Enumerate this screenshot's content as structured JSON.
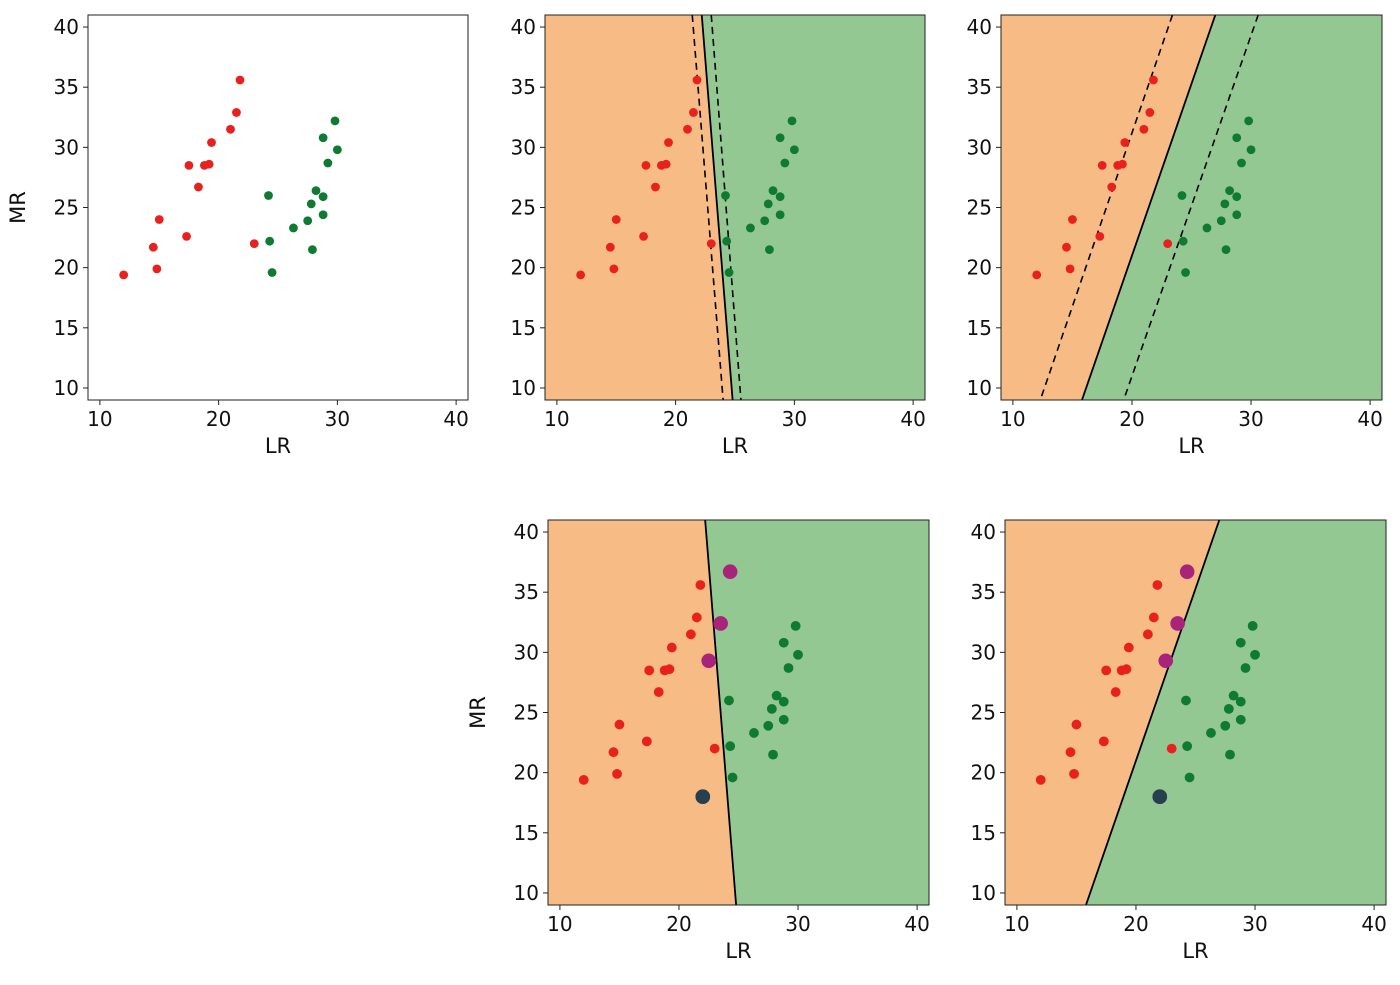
{
  "colors": {
    "class_a_point": "#e8211f",
    "class_b_point": "#0f7a32",
    "new_point_purple": "#a8237a",
    "new_point_dark": "#26404f",
    "region_a": "#f7bb86",
    "region_b": "#93c893",
    "boundary": "#000000"
  },
  "chart_data": [
    {
      "type": "scatter",
      "xlabel": "LR",
      "ylabel": "MR",
      "xlim": [
        9,
        41
      ],
      "ylim": [
        9,
        41
      ],
      "xticks": [
        "10",
        "20",
        "30",
        "40"
      ],
      "yticks": [
        "10",
        "15",
        "20",
        "25",
        "30",
        "35",
        "40"
      ],
      "grid": false,
      "series": [
        {
          "class": "a",
          "x": [
            12,
            14.5,
            15,
            14.8,
            17.3,
            17.5,
            18.3,
            18.8,
            19.2,
            19.4,
            21,
            21.5,
            21.8,
            23
          ],
          "y": [
            19.4,
            21.7,
            24,
            19.9,
            22.6,
            28.5,
            26.7,
            28.5,
            28.6,
            30.4,
            31.5,
            32.9,
            35.6,
            22
          ]
        },
        {
          "class": "b",
          "x": [
            24.2,
            24.3,
            24.5,
            26.3,
            27.5,
            27.8,
            27.9,
            28.2,
            28.8,
            28.8,
            28.8,
            29.2,
            29.8,
            30
          ],
          "y": [
            26,
            22.2,
            19.6,
            23.3,
            23.9,
            25.3,
            21.5,
            26.4,
            24.4,
            25.9,
            30.8,
            28.7,
            32.2,
            29.8
          ]
        }
      ]
    },
    {
      "type": "scatter",
      "xlabel": "LR",
      "ylabel": "",
      "xlim": [
        9,
        41
      ],
      "ylim": [
        9,
        41
      ],
      "xticks": [
        "10",
        "20",
        "30",
        "40"
      ],
      "yticks": [
        "10",
        "15",
        "20",
        "25",
        "30",
        "35",
        "40"
      ],
      "grid": false,
      "regions": {
        "left": "a",
        "right": "b"
      },
      "boundary": {
        "x_at_bottom": 24.8,
        "x_at_top": 22.2
      },
      "margins": [
        {
          "x_at_bottom": 24.0,
          "x_at_top": 21.4
        },
        {
          "x_at_bottom": 25.5,
          "x_at_top": 23.0
        }
      ],
      "series": [
        {
          "class": "a",
          "x": [
            12,
            14.5,
            15,
            14.8,
            17.3,
            17.5,
            18.3,
            18.8,
            19.2,
            19.4,
            21,
            21.5,
            21.8,
            23
          ],
          "y": [
            19.4,
            21.7,
            24,
            19.9,
            22.6,
            28.5,
            26.7,
            28.5,
            28.6,
            30.4,
            31.5,
            32.9,
            35.6,
            22
          ]
        },
        {
          "class": "b",
          "x": [
            24.2,
            24.3,
            24.5,
            26.3,
            27.5,
            27.8,
            27.9,
            28.2,
            28.8,
            28.8,
            28.8,
            29.2,
            29.8,
            30
          ],
          "y": [
            26,
            22.2,
            19.6,
            23.3,
            23.9,
            25.3,
            21.5,
            26.4,
            24.4,
            25.9,
            30.8,
            28.7,
            32.2,
            29.8
          ]
        }
      ]
    },
    {
      "type": "scatter",
      "xlabel": "LR",
      "ylabel": "",
      "xlim": [
        9,
        41
      ],
      "ylim": [
        9,
        41
      ],
      "xticks": [
        "10",
        "20",
        "30",
        "40"
      ],
      "yticks": [
        "10",
        "15",
        "20",
        "25",
        "30",
        "35",
        "40"
      ],
      "grid": false,
      "regions": {
        "left": "a",
        "right": "b"
      },
      "boundary": {
        "x_at_bottom": 15.8,
        "x_at_top": 27.0
      },
      "margins": [
        {
          "x_at_bottom": 12.3,
          "x_at_top": 23.4
        },
        {
          "x_at_bottom": 19.3,
          "x_at_top": 30.6
        }
      ],
      "series": [
        {
          "class": "a",
          "x": [
            12,
            14.5,
            15,
            14.8,
            17.3,
            17.5,
            18.3,
            18.8,
            19.2,
            19.4,
            21,
            21.5,
            21.8,
            23
          ],
          "y": [
            19.4,
            21.7,
            24,
            19.9,
            22.6,
            28.5,
            26.7,
            28.5,
            28.6,
            30.4,
            31.5,
            32.9,
            35.6,
            22
          ]
        },
        {
          "class": "b",
          "x": [
            24.2,
            24.3,
            24.5,
            26.3,
            27.5,
            27.8,
            27.9,
            28.2,
            28.8,
            28.8,
            28.8,
            29.2,
            29.8,
            30
          ],
          "y": [
            26,
            22.2,
            19.6,
            23.3,
            23.9,
            25.3,
            21.5,
            26.4,
            24.4,
            25.9,
            30.8,
            28.7,
            32.2,
            29.8
          ]
        }
      ]
    },
    {
      "type": "scatter",
      "xlabel": "LR",
      "ylabel": "MR",
      "xlim": [
        9,
        41
      ],
      "ylim": [
        9,
        41
      ],
      "xticks": [
        "10",
        "20",
        "30",
        "40"
      ],
      "yticks": [
        "10",
        "15",
        "20",
        "25",
        "30",
        "35",
        "40"
      ],
      "grid": false,
      "regions": {
        "left": "a",
        "right": "b"
      },
      "boundary": {
        "x_at_bottom": 24.8,
        "x_at_top": 22.2
      },
      "series": [
        {
          "class": "a",
          "x": [
            12,
            14.5,
            15,
            14.8,
            17.3,
            17.5,
            18.3,
            18.8,
            19.2,
            19.4,
            21,
            21.5,
            21.8,
            23
          ],
          "y": [
            19.4,
            21.7,
            24,
            19.9,
            22.6,
            28.5,
            26.7,
            28.5,
            28.6,
            30.4,
            31.5,
            32.9,
            35.6,
            22
          ]
        },
        {
          "class": "b",
          "x": [
            24.2,
            24.3,
            24.5,
            26.3,
            27.5,
            27.8,
            27.9,
            28.2,
            28.8,
            28.8,
            28.8,
            29.2,
            29.8,
            30
          ],
          "y": [
            26,
            22.2,
            19.6,
            23.3,
            23.9,
            25.3,
            21.5,
            26.4,
            24.4,
            25.9,
            30.8,
            28.7,
            32.2,
            29.8
          ]
        },
        {
          "class": "new_purple",
          "x": [
            24.3,
            23.5,
            22.5
          ],
          "y": [
            36.7,
            32.4,
            29.3
          ]
        },
        {
          "class": "new_dark",
          "x": [
            22,
            22
          ],
          "y": [
            18,
            18
          ]
        }
      ]
    },
    {
      "type": "scatter",
      "xlabel": "LR",
      "ylabel": "",
      "xlim": [
        9,
        41
      ],
      "ylim": [
        9,
        41
      ],
      "xticks": [
        "10",
        "20",
        "30",
        "40"
      ],
      "yticks": [
        "10",
        "15",
        "20",
        "25",
        "30",
        "35",
        "40"
      ],
      "grid": false,
      "regions": {
        "left": "a",
        "right": "b"
      },
      "boundary": {
        "x_at_bottom": 15.8,
        "x_at_top": 27.0
      },
      "series": [
        {
          "class": "a",
          "x": [
            12,
            14.5,
            15,
            14.8,
            17.3,
            17.5,
            18.3,
            18.8,
            19.2,
            19.4,
            21,
            21.5,
            21.8,
            23
          ],
          "y": [
            19.4,
            21.7,
            24,
            19.9,
            22.6,
            28.5,
            26.7,
            28.5,
            28.6,
            30.4,
            31.5,
            32.9,
            35.6,
            22
          ]
        },
        {
          "class": "b",
          "x": [
            24.2,
            24.3,
            24.5,
            26.3,
            27.5,
            27.8,
            27.9,
            28.2,
            28.8,
            28.8,
            28.8,
            29.2,
            29.8,
            30
          ],
          "y": [
            26,
            22.2,
            19.6,
            23.3,
            23.9,
            25.3,
            21.5,
            26.4,
            24.4,
            25.9,
            30.8,
            28.7,
            32.2,
            29.8
          ]
        },
        {
          "class": "new_purple",
          "x": [
            24.3,
            23.5,
            22.5
          ],
          "y": [
            36.7,
            32.4,
            29.3
          ]
        },
        {
          "class": "new_dark",
          "x": [
            22,
            22
          ],
          "y": [
            18,
            18
          ]
        }
      ]
    }
  ]
}
